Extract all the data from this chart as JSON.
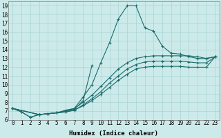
{
  "xlabel": "Humidex (Indice chaleur)",
  "ylabel": "",
  "background_color": "#cceaea",
  "grid_color": "#aad4d4",
  "line_color": "#1a6b6b",
  "xlim": [
    -0.5,
    23.5
  ],
  "ylim": [
    6,
    19.5
  ],
  "xticks": [
    0,
    1,
    2,
    3,
    4,
    5,
    6,
    7,
    8,
    9,
    10,
    11,
    12,
    13,
    14,
    15,
    16,
    17,
    18,
    19,
    20,
    21,
    22,
    23
  ],
  "yticks": [
    6,
    7,
    8,
    9,
    10,
    11,
    12,
    13,
    14,
    15,
    16,
    17,
    18,
    19
  ],
  "lines": [
    {
      "x": [
        0,
        1,
        2,
        3,
        4,
        5,
        6,
        7,
        8,
        9,
        10,
        11,
        12,
        13,
        14,
        15,
        16,
        17,
        18,
        19,
        20,
        21,
        22,
        23
      ],
      "y": [
        7.3,
        6.9,
        6.3,
        6.6,
        6.7,
        6.8,
        7.1,
        7.3,
        8.6,
        10.0,
        12.5,
        14.8,
        17.5,
        19.0,
        19.0,
        16.5,
        16.1,
        14.4,
        13.6,
        13.5,
        13.2,
        13.0,
        13.0,
        13.2
      ]
    },
    {
      "x": [
        0,
        1,
        2,
        3,
        4,
        5,
        6,
        7,
        8,
        9
      ],
      "y": [
        7.3,
        6.9,
        6.3,
        6.6,
        6.7,
        6.8,
        7.0,
        7.2,
        8.2,
        12.2
      ]
    },
    {
      "x": [
        0,
        3,
        4,
        5,
        6,
        7,
        8,
        9,
        10,
        11,
        12,
        13,
        14,
        15,
        16,
        17,
        18,
        19,
        20,
        21,
        22,
        23
      ],
      "y": [
        7.3,
        6.6,
        6.7,
        6.8,
        7.0,
        7.3,
        8.0,
        8.8,
        9.8,
        10.8,
        11.8,
        12.5,
        13.0,
        13.2,
        13.3,
        13.3,
        13.3,
        13.3,
        13.3,
        13.2,
        13.0,
        13.2
      ]
    },
    {
      "x": [
        0,
        3,
        4,
        5,
        6,
        7,
        8,
        9,
        10,
        11,
        12,
        13,
        14,
        15,
        16,
        17,
        18,
        19,
        20,
        21,
        22,
        23
      ],
      "y": [
        7.3,
        6.6,
        6.7,
        6.8,
        6.9,
        7.1,
        7.7,
        8.4,
        9.2,
        10.2,
        11.0,
        11.8,
        12.3,
        12.6,
        12.7,
        12.7,
        12.7,
        12.7,
        12.6,
        12.5,
        12.5,
        13.2
      ]
    },
    {
      "x": [
        0,
        3,
        4,
        5,
        6,
        7,
        8,
        9,
        10,
        11,
        12,
        13,
        14,
        15,
        16,
        17,
        18,
        19,
        20,
        21,
        22,
        23
      ],
      "y": [
        7.3,
        6.6,
        6.7,
        6.8,
        6.9,
        7.1,
        7.6,
        8.2,
        8.9,
        9.7,
        10.5,
        11.2,
        11.8,
        12.0,
        12.1,
        12.1,
        12.1,
        12.1,
        12.0,
        12.0,
        12.0,
        13.2
      ]
    }
  ],
  "marker": "+",
  "markersize": 3,
  "markeredgewidth": 0.8,
  "linewidth": 0.8,
  "tick_fontsize": 5.5,
  "xlabel_fontsize": 6.5,
  "font": "monospace"
}
